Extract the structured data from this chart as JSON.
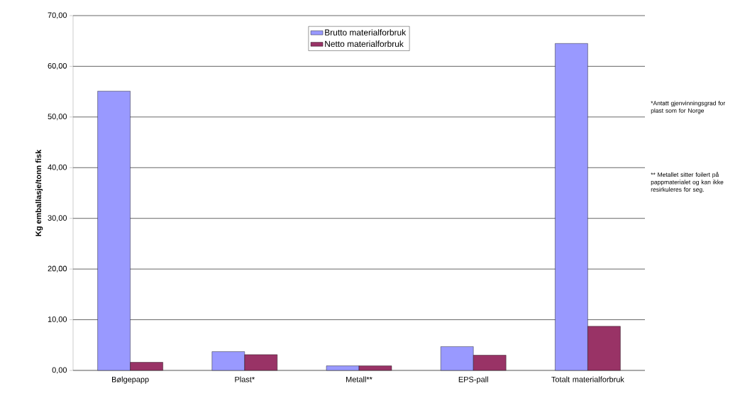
{
  "chart_data": {
    "type": "bar",
    "ylabel": "Kg emballasje/tonn fisk",
    "categories": [
      "Bølgepapp",
      "Plast*",
      "Metall**",
      "EPS-pall",
      "Totalt materialforbruk"
    ],
    "series": [
      {
        "name": "Brutto materialforbruk",
        "color": "#9999ff",
        "values": [
          55.1,
          3.7,
          0.9,
          4.7,
          64.5
        ]
      },
      {
        "name": "Netto materialforbruk",
        "color": "#993366",
        "values": [
          1.6,
          3.1,
          0.9,
          3.0,
          8.7
        ]
      }
    ],
    "ylim": [
      0,
      70
    ],
    "yticks": [
      {
        "value": 0,
        "label": "0,00"
      },
      {
        "value": 10,
        "label": "10,00"
      },
      {
        "value": 20,
        "label": "20,00"
      },
      {
        "value": 30,
        "label": "30,00"
      },
      {
        "value": 40,
        "label": "40,00"
      },
      {
        "value": 50,
        "label": "50,00"
      },
      {
        "value": 60,
        "label": "60,00"
      },
      {
        "value": 70,
        "label": "70,00"
      }
    ],
    "grid": "y",
    "legend": "top",
    "annotations": [
      "*Antatt gjenvinningsgrad for plast  som for Norge",
      "** Metallet sitter foilert på pappmaterialet og kan ikke resirkuleres for seg."
    ]
  }
}
